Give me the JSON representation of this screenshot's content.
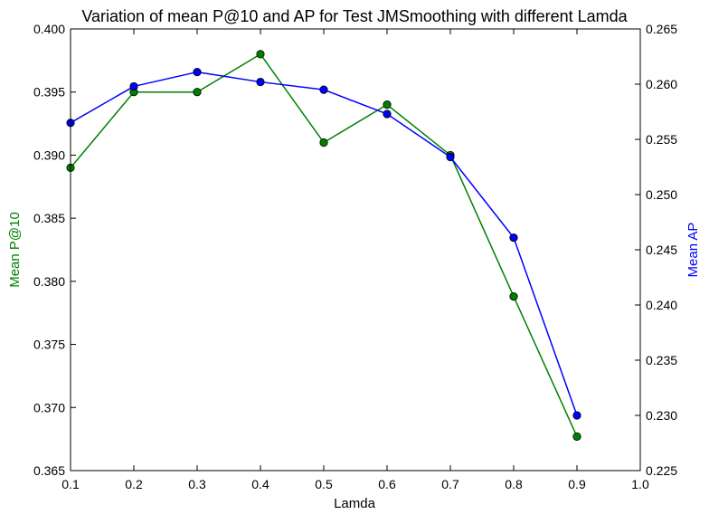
{
  "chart_data": {
    "type": "line",
    "title": "Variation of mean P@10 and AP for Test JMSmoothing with different Lamda",
    "xlabel": "Lamda",
    "ylabel_left": "Mean P@10",
    "ylabel_right": "Mean AP",
    "xlim": [
      0.1,
      1.0
    ],
    "ylim_left": [
      0.365,
      0.4
    ],
    "ylim_right": [
      0.225,
      0.265
    ],
    "x_ticks": [
      "0.1",
      "0.2",
      "0.3",
      "0.4",
      "0.5",
      "0.6",
      "0.7",
      "0.8",
      "0.9",
      "1.0"
    ],
    "y_left_ticks": [
      "0.365",
      "0.370",
      "0.375",
      "0.380",
      "0.385",
      "0.390",
      "0.395",
      "0.400"
    ],
    "y_right_ticks": [
      "0.225",
      "0.230",
      "0.235",
      "0.240",
      "0.245",
      "0.250",
      "0.255",
      "0.260",
      "0.265"
    ],
    "grid": false,
    "x": [
      0.1,
      0.2,
      0.3,
      0.4,
      0.5,
      0.6,
      0.7,
      0.8,
      0.9
    ],
    "series": [
      {
        "name": "Mean P@10",
        "axis": "left",
        "color": "#008000",
        "values": [
          0.389,
          0.395,
          0.395,
          0.398,
          0.391,
          0.394,
          0.39,
          0.3788,
          0.3677
        ]
      },
      {
        "name": "Mean AP",
        "axis": "right",
        "color": "#0000ff",
        "values": [
          0.2565,
          0.2598,
          0.2611,
          0.2602,
          0.2595,
          0.2573,
          0.2534,
          0.2461,
          0.23
        ]
      }
    ]
  }
}
